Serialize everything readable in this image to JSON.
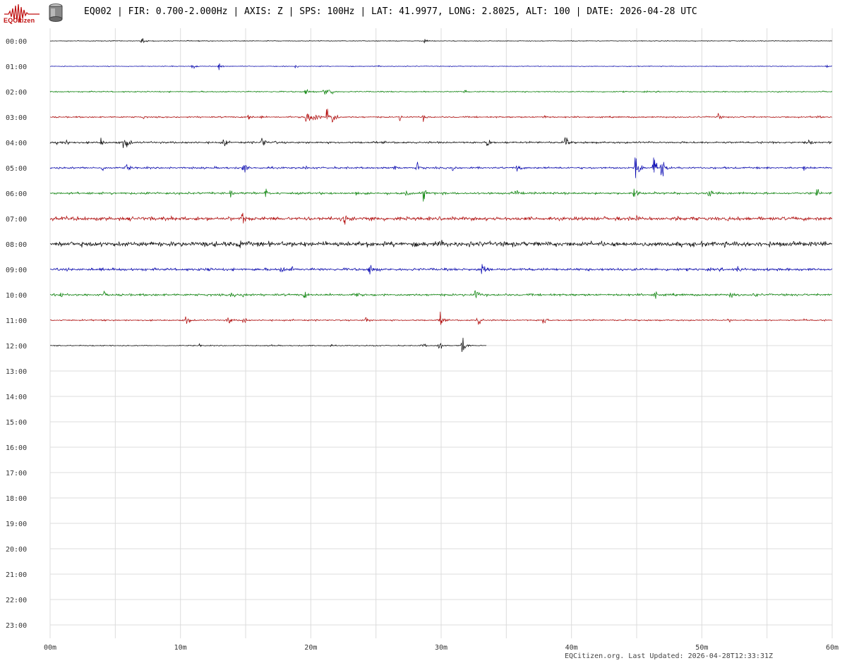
{
  "header": {
    "title": "EQ002 | FIR: 0.700-2.000Hz | AXIS: Z | SPS: 100Hz | LAT: 41.9977, LONG: 2.8025, ALT: 100 | DATE: 2026-04-28 UTC",
    "logo_text": "EQCitizen"
  },
  "footer": {
    "text": "EQCitizen.org. Last Updated: 2026-04-28T12:33:31Z"
  },
  "colors": {
    "trace_cycle": [
      "#000000",
      "#0000b0",
      "#008000",
      "#b00000"
    ],
    "grid": "#dcdcdc",
    "logo": "#c01010"
  },
  "chart_data": {
    "type": "line",
    "title": "",
    "xlabel": "",
    "ylabel": "",
    "grid": true,
    "x_ticks": [
      "00m",
      "10m",
      "20m",
      "30m",
      "40m",
      "50m",
      "60m"
    ],
    "xlim": [
      0,
      60
    ],
    "hours": [
      "00:00",
      "01:00",
      "02:00",
      "03:00",
      "04:00",
      "05:00",
      "06:00",
      "07:00",
      "08:00",
      "09:00",
      "10:00",
      "11:00",
      "12:00",
      "13:00",
      "14:00",
      "15:00",
      "16:00",
      "17:00",
      "18:00",
      "19:00",
      "20:00",
      "21:00",
      "22:00",
      "23:00"
    ],
    "series": [
      {
        "hour": "00:00",
        "end_min": 60,
        "noise": 0.6,
        "events": [
          [
            7,
            10
          ],
          [
            28.7,
            4
          ],
          [
            36,
            2
          ],
          [
            40,
            2
          ]
        ]
      },
      {
        "hour": "01:00",
        "end_min": 60,
        "noise": 0.6,
        "events": [
          [
            10.9,
            8
          ],
          [
            12.9,
            9
          ],
          [
            18.8,
            4
          ],
          [
            20.5,
            3
          ],
          [
            25.2,
            3
          ],
          [
            59.5,
            5
          ]
        ]
      },
      {
        "hour": "02:00",
        "end_min": 60,
        "noise": 1.0,
        "events": [
          [
            19.6,
            10
          ],
          [
            21.0,
            18
          ],
          [
            21.4,
            14
          ],
          [
            31.8,
            4
          ]
        ]
      },
      {
        "hour": "03:00",
        "end_min": 60,
        "noise": 1.2,
        "events": [
          [
            7.1,
            5
          ],
          [
            15.2,
            9
          ],
          [
            16.1,
            5
          ],
          [
            19.6,
            28
          ],
          [
            20.2,
            28
          ],
          [
            21.2,
            27
          ],
          [
            21.6,
            24
          ],
          [
            26.8,
            8
          ],
          [
            28.6,
            8
          ],
          [
            37.8,
            8
          ],
          [
            51.2,
            10
          ],
          [
            58.8,
            7
          ]
        ]
      },
      {
        "hour": "04:00",
        "end_min": 60,
        "noise": 1.6,
        "events": [
          [
            0.5,
            12
          ],
          [
            1.2,
            10
          ],
          [
            3.9,
            10
          ],
          [
            5.6,
            16
          ],
          [
            5.9,
            14
          ],
          [
            13.3,
            12
          ],
          [
            16.2,
            20
          ],
          [
            17.2,
            6
          ],
          [
            33.5,
            14
          ],
          [
            39.5,
            16
          ],
          [
            58.2,
            8
          ]
        ]
      },
      {
        "hour": "05:00",
        "end_min": 60,
        "noise": 1.6,
        "events": [
          [
            4.0,
            10
          ],
          [
            5.8,
            12
          ],
          [
            14.8,
            18
          ],
          [
            19.5,
            8
          ],
          [
            26.4,
            8
          ],
          [
            28.1,
            14
          ],
          [
            30.9,
            10
          ],
          [
            35.8,
            12
          ],
          [
            44.9,
            40
          ],
          [
            46.3,
            32
          ],
          [
            46.9,
            30
          ],
          [
            57.8,
            8
          ]
        ]
      },
      {
        "hour": "06:00",
        "end_min": 60,
        "noise": 1.8,
        "events": [
          [
            7.5,
            10
          ],
          [
            13.8,
            8
          ],
          [
            16.5,
            12
          ],
          [
            23.4,
            8
          ],
          [
            27.3,
            12
          ],
          [
            28.6,
            18
          ],
          [
            35.7,
            14
          ],
          [
            44.8,
            20
          ],
          [
            50.5,
            14
          ],
          [
            58.8,
            12
          ]
        ]
      },
      {
        "hour": "07:00",
        "end_min": 60,
        "noise": 3.0,
        "events": [
          [
            9.3,
            10
          ],
          [
            14.7,
            18
          ],
          [
            22.5,
            18
          ],
          [
            24.5,
            14
          ],
          [
            45,
            14
          ],
          [
            48,
            10
          ]
        ]
      },
      {
        "hour": "08:00",
        "end_min": 60,
        "noise": 4.0,
        "events": [
          [
            14.6,
            14
          ],
          [
            24.3,
            12
          ],
          [
            30.0,
            12
          ],
          [
            55.1,
            12
          ]
        ]
      },
      {
        "hour": "09:00",
        "end_min": 60,
        "noise": 2.2,
        "events": [
          [
            12.0,
            10
          ],
          [
            17.7,
            14
          ],
          [
            18.5,
            10
          ],
          [
            24.5,
            20
          ],
          [
            33.1,
            24
          ],
          [
            52.7,
            12
          ],
          [
            57.5,
            6
          ]
        ]
      },
      {
        "hour": "10:00",
        "end_min": 60,
        "noise": 1.8,
        "events": [
          [
            0.8,
            10
          ],
          [
            4.1,
            8
          ],
          [
            13.9,
            12
          ],
          [
            14.8,
            14
          ],
          [
            19.5,
            12
          ],
          [
            23.5,
            10
          ],
          [
            32.6,
            18
          ],
          [
            46.4,
            10
          ],
          [
            52.2,
            14
          ],
          [
            54.0,
            10
          ]
        ]
      },
      {
        "hour": "11:00",
        "end_min": 60,
        "noise": 1.2,
        "events": [
          [
            10.4,
            14
          ],
          [
            13.6,
            14
          ],
          [
            14.8,
            12
          ],
          [
            24.2,
            10
          ],
          [
            29.9,
            16
          ],
          [
            32.8,
            18
          ],
          [
            37.8,
            14
          ],
          [
            52.0,
            6
          ],
          [
            57.8,
            4
          ]
        ]
      },
      {
        "hour": "12:00",
        "end_min": 33.5,
        "noise": 0.8,
        "events": [
          [
            11.4,
            5
          ],
          [
            17.0,
            3
          ],
          [
            21.5,
            3
          ],
          [
            24.8,
            4
          ],
          [
            28.5,
            8
          ],
          [
            29.8,
            14
          ],
          [
            31.6,
            26
          ]
        ]
      }
    ]
  }
}
